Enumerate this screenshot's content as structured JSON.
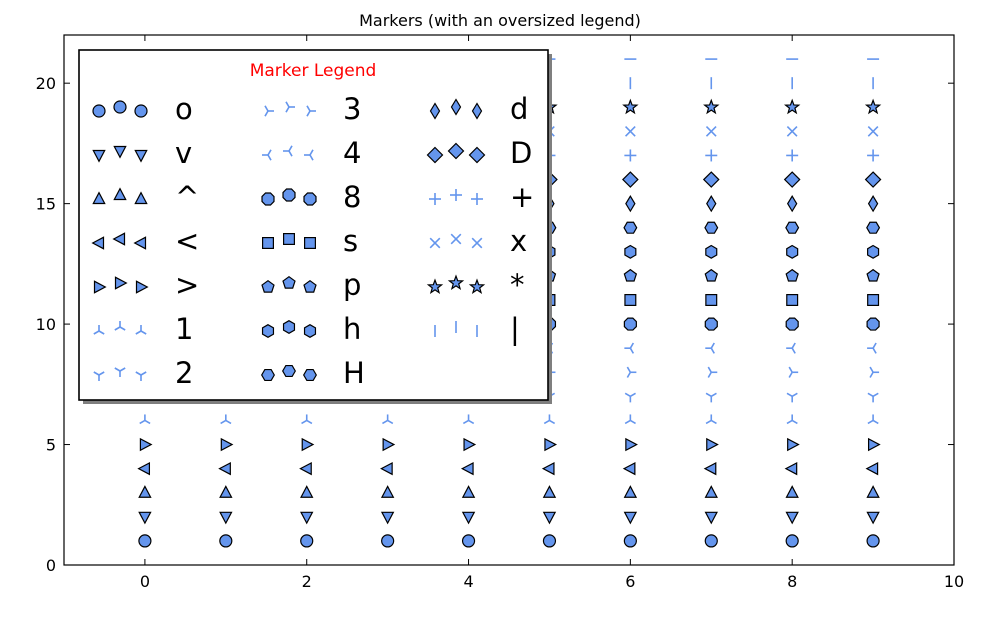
{
  "chart_data": {
    "type": "scatter",
    "title": "Markers (with an oversized legend)",
    "xlabel": "",
    "ylabel": "",
    "xlim": [
      -1,
      10
    ],
    "ylim": [
      0,
      22
    ],
    "xticks": [
      0,
      2,
      4,
      6,
      8,
      10
    ],
    "yticks": [
      0,
      5,
      10,
      15,
      20
    ],
    "x": [
      0,
      1,
      2,
      3,
      4,
      5,
      6,
      7,
      8,
      9
    ],
    "marker_color": "#6495ed",
    "edge_color": "#000000",
    "series": [
      {
        "name": "o",
        "marker": "circle",
        "y": 1
      },
      {
        "name": "v",
        "marker": "triangle_down",
        "y": 2
      },
      {
        "name": "^",
        "marker": "triangle_up",
        "y": 3
      },
      {
        "name": "<",
        "marker": "triangle_left",
        "y": 4
      },
      {
        "name": ">",
        "marker": "triangle_right",
        "y": 5
      },
      {
        "name": "1",
        "marker": "tri_down",
        "y": 6
      },
      {
        "name": "2",
        "marker": "tri_up",
        "y": 7
      },
      {
        "name": "3",
        "marker": "tri_left",
        "y": 8
      },
      {
        "name": "4",
        "marker": "tri_right",
        "y": 9
      },
      {
        "name": "8",
        "marker": "octagon",
        "y": 10
      },
      {
        "name": "s",
        "marker": "square",
        "y": 11
      },
      {
        "name": "p",
        "marker": "pentagon",
        "y": 12
      },
      {
        "name": "h",
        "marker": "hexagon1",
        "y": 13
      },
      {
        "name": "H",
        "marker": "hexagon2",
        "y": 14
      },
      {
        "name": "d",
        "marker": "thin_diamond",
        "y": 15
      },
      {
        "name": "D",
        "marker": "diamond",
        "y": 16
      },
      {
        "name": "+",
        "marker": "plus",
        "y": 17
      },
      {
        "name": "x",
        "marker": "x",
        "y": 18
      },
      {
        "name": "*",
        "marker": "star",
        "y": 19
      },
      {
        "name": "|",
        "marker": "vline",
        "y": 20
      },
      {
        "name": "_",
        "marker": "hline",
        "y": 21
      }
    ],
    "legend": {
      "title": "Marker Legend",
      "title_color": "#ff0000",
      "placement": "upper-left",
      "columns": 3,
      "entries": [
        "o",
        "v",
        "^",
        "<",
        ">",
        "1",
        "2",
        "3",
        "4",
        "8",
        "s",
        "p",
        "h",
        "H",
        "d",
        "D",
        "+",
        "x",
        "*",
        "|"
      ]
    }
  }
}
